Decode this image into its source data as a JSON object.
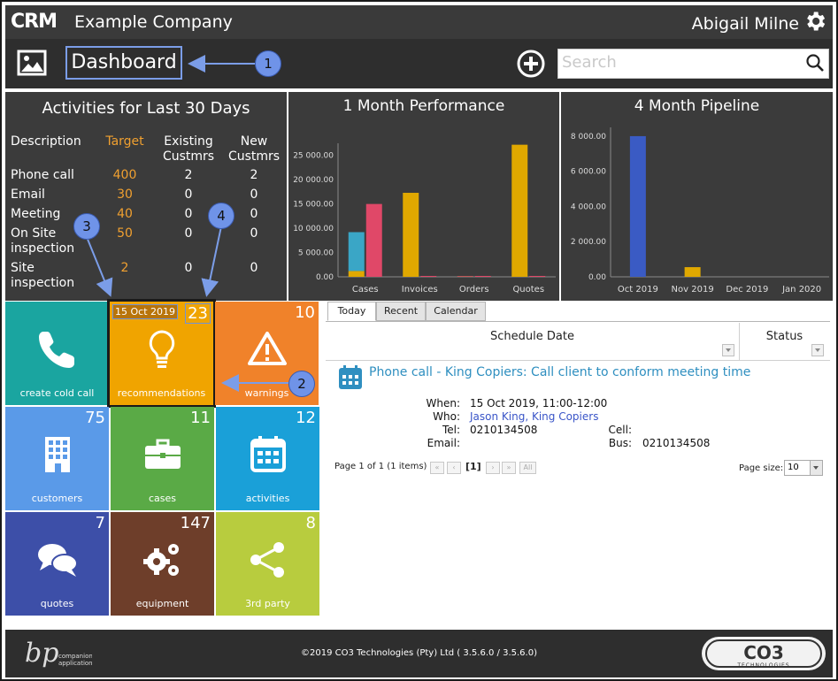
{
  "header": {
    "logo_text": "CRM",
    "company": "Example Company",
    "user": "Abigail Milne"
  },
  "subheader": {
    "title": "Dashboard",
    "search_placeholder": "Search"
  },
  "activities": {
    "title": "Activities for Last 30 Days",
    "columns": [
      "Description",
      "Target",
      "Existing Custmrs",
      "New Custmrs"
    ],
    "rows": [
      {
        "desc": "Phone call",
        "target": "400",
        "existing": "2",
        "new": "2"
      },
      {
        "desc": "Email",
        "target": "30",
        "existing": "0",
        "new": "0"
      },
      {
        "desc": "Meeting",
        "target": "40",
        "existing": "0",
        "new": "0"
      },
      {
        "desc": "On Site inspection",
        "target": "50",
        "existing": "0",
        "new": "0"
      },
      {
        "desc": "Site inspection",
        "target": "2",
        "existing": "0",
        "new": "0"
      }
    ]
  },
  "chart_data": [
    {
      "type": "bar",
      "title": "1 Month Performance",
      "categories": [
        "Cases",
        "Invoices",
        "Orders",
        "Quotes"
      ],
      "ylim": [
        0,
        27500
      ],
      "yticks": [
        "0.00",
        "5 000.00",
        "10 000.00",
        "15 000.00",
        "20 000.00",
        "25 000.00"
      ],
      "bars": [
        {
          "category": "Cases",
          "stack": [
            1200,
            8000
          ],
          "colors": [
            "#e0a800",
            "#3aa6c6"
          ]
        },
        {
          "category": "Cases",
          "stack": [
            15000
          ],
          "colors": [
            "#e04868"
          ]
        },
        {
          "category": "Invoices",
          "stack": [
            17300
          ],
          "colors": [
            "#e0a800"
          ]
        },
        {
          "category": "Invoices",
          "stack": [
            150
          ],
          "colors": [
            "#e04868"
          ]
        },
        {
          "category": "Orders",
          "stack": [
            100
          ],
          "colors": [
            "#c05858"
          ]
        },
        {
          "category": "Orders",
          "stack": [
            100
          ],
          "colors": [
            "#e04868"
          ]
        },
        {
          "category": "Quotes",
          "stack": [
            27200
          ],
          "colors": [
            "#e0a800"
          ]
        },
        {
          "category": "Quotes",
          "stack": [
            150
          ],
          "colors": [
            "#e04868"
          ]
        }
      ]
    },
    {
      "type": "bar",
      "title": "4 Month Pipeline",
      "categories": [
        "Oct 2019",
        "Nov 2019",
        "Dec 2019",
        "Jan 2020"
      ],
      "ylim": [
        0,
        8500
      ],
      "yticks": [
        "0.00",
        "2 000.00",
        "4 000.00",
        "6 000.00",
        "8 000.00"
      ],
      "bars": [
        {
          "category": "Oct 2019",
          "stack": [
            8000
          ],
          "colors": [
            "#3a5bc4"
          ]
        },
        {
          "category": "Nov 2019",
          "stack": [
            550
          ],
          "colors": [
            "#e0a800"
          ]
        },
        {
          "category": "Dec 2019",
          "stack": [
            0
          ],
          "colors": [
            "#e0a800"
          ]
        },
        {
          "category": "Jan 2020",
          "stack": [
            0
          ],
          "colors": [
            "#e0a800"
          ]
        }
      ]
    }
  ],
  "tiles": [
    {
      "label": "create cold call",
      "count": "",
      "color": "#1aa5a0",
      "icon": "phone-icon"
    },
    {
      "label": "recommendations",
      "count": "23",
      "date": "15 Oct 2019",
      "color": "#f0a400",
      "icon": "lightbulb-icon"
    },
    {
      "label": "warnings",
      "count": "10",
      "color": "#f0822a",
      "icon": "warning-icon"
    },
    {
      "label": "customers",
      "count": "75",
      "color": "#5a9ae8",
      "icon": "building-icon"
    },
    {
      "label": "cases",
      "count": "11",
      "color": "#5aaa46",
      "icon": "briefcase-icon"
    },
    {
      "label": "activities",
      "count": "12",
      "color": "#1aa0d8",
      "icon": "calendar-icon"
    },
    {
      "label": "quotes",
      "count": "7",
      "color": "#3d4fa8",
      "icon": "chat-icon"
    },
    {
      "label": "equipment",
      "count": "147",
      "color": "#6e3e2a",
      "icon": "gears-icon"
    },
    {
      "label": "3rd party",
      "count": "8",
      "color": "#b8cc3e",
      "icon": "share-icon"
    }
  ],
  "schedule": {
    "tabs": [
      "Today",
      "Recent",
      "Calendar"
    ],
    "col_schedule": "Schedule Date",
    "col_status": "Status",
    "event": {
      "title": "Phone call - King Copiers: Call client to conform meeting time",
      "when_label": "When:",
      "when": "15 Oct 2019, 11:00-12:00",
      "who_label": "Who:",
      "who": "Jason King, King Copiers",
      "tel_label": "Tel:",
      "tel": "0210134508",
      "email_label": "Email:",
      "email": "",
      "cell_label": "Cell:",
      "cell": "",
      "bus_label": "Bus:",
      "bus": "0210134508"
    },
    "pager": {
      "summary": "Page 1 of 1 (1 items)",
      "current": "[1]",
      "all": "All",
      "page_size_label": "Page size:",
      "page_size": "10"
    }
  },
  "footer": {
    "copyright": "©2019 CO3 Technologies (Pty) Ltd ( 3.5.6.0 / 3.5.6.0)",
    "companion_text": "companion application",
    "co3_brand": "CO3 TECHNOLOGIES"
  },
  "callouts": [
    "1",
    "2",
    "3",
    "4"
  ],
  "colors": {
    "accent": "#f0a030",
    "callout": "#6f93e8",
    "link": "#2f8fc0"
  }
}
